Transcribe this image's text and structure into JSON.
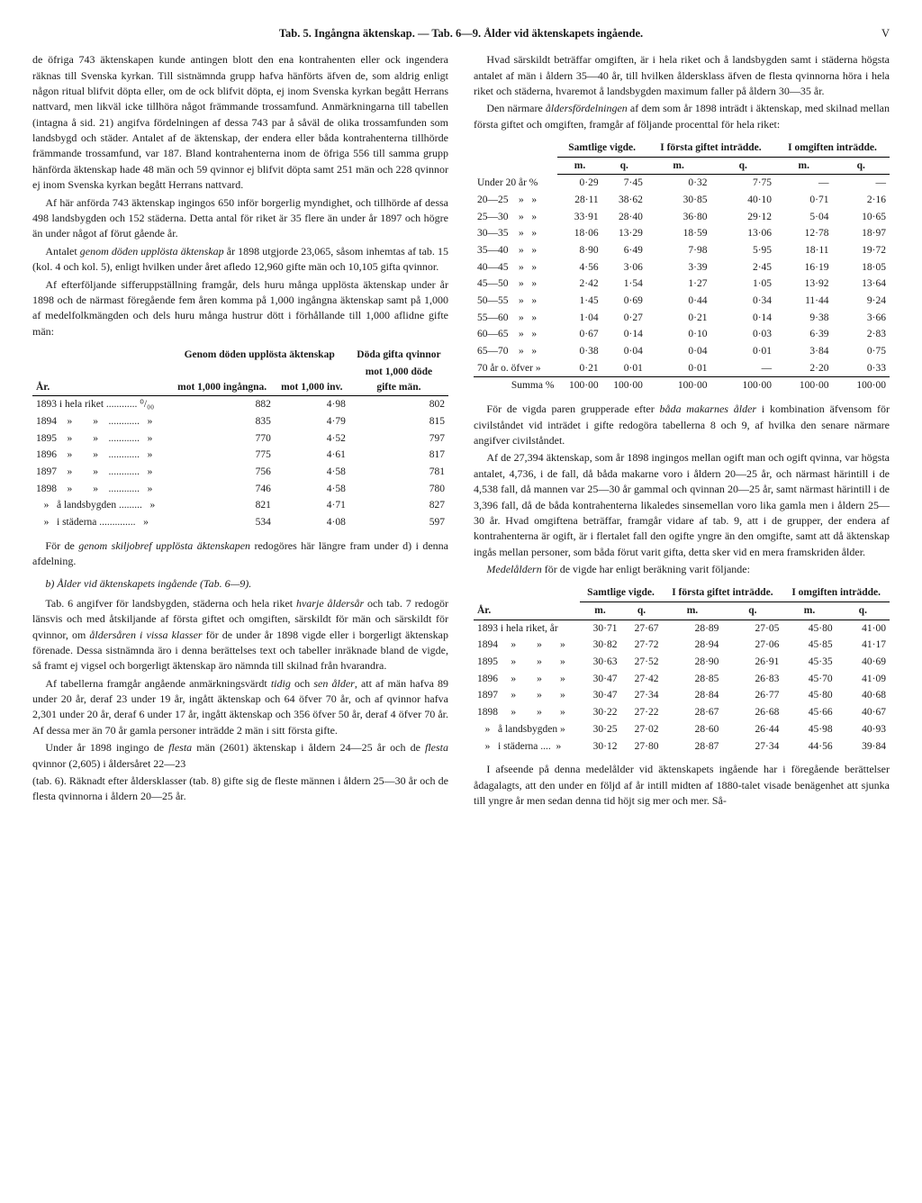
{
  "header": {
    "title": "Tab. 5. Ingångna äktenskap. — Tab. 6—9. Ålder vid äktenskapets ingående.",
    "pagenum": "V"
  },
  "col_left": {
    "p1": "de öfriga 743 äktenskapen kunde antingen blott den ena kontrahenten eller ock ingendera räknas till Svenska kyrkan. Till sistnämnda grupp hafva hänförts äfven de, som aldrig enligt någon ritual blifvit döpta eller, om de ock blifvit döpta, ej inom Svenska kyrkan begått Herrans nattvard, men likväl icke tillhöra något främmande trossamfund. Anmärkningarna till tabellen (intagna å sid. 21) angifva fördelningen af dessa 743 par å såväl de olika trossamfunden som landsbygd och städer. Antalet af de äktenskap, der endera eller båda kontrahenterna tillhörde främmande trossamfund, var 187. Bland kontrahenterna inom de öfriga 556 till samma grupp hänförda äktenskap hade 48 män och 59 qvinnor ej blifvit döpta samt 251 män och 228 qvinnor ej inom Svenska kyrkan begått Herrans nattvard.",
    "p2": "Af här anförda 743 äktenskap ingingos 650 inför borgerlig myndighet, och tillhörde af dessa 498 landsbygden och 152 städerna. Detta antal för riket är 35 flere än under år 1897 och högre än under något af förut gående år.",
    "p3_a": "Antalet ",
    "p3_em": "genom döden upplösta äktenskap",
    "p3_b": " år 1898 utgjorde 23,065, såsom inhemtas af tab. 15 (kol. 4 och kol. 5), enligt hvilken under året afledo 12,960 gifte män och 10,105 gifta qvinnor.",
    "p4": "Af efterföljande sifferuppställning framgår, dels huru många upplösta äktenskap under år 1898 och de närmast föregående fem åren komma på 1,000 ingångna äktenskap samt på 1,000 af medelfolkmängden och dels huru många hustrur dött i förhållande till 1,000 aflidne gifte män:",
    "table1": {
      "col_year": "År.",
      "col_b_a": "Genom döden upplösta äktenskap",
      "col_b_b1": "mot 1,000 ingångna.",
      "col_b_b2": "mot 1,000 inv.",
      "col_c_a": "Döda gifta qvinnor",
      "col_c_b": "mot 1,000 döde",
      "col_c_c": "gifte män.",
      "rows": [
        {
          "year": "1893 i hela riket ............ ⁰/₀₀",
          "a": "882",
          "b": "4·98",
          "c": "802"
        },
        {
          "year": "1894    »        »    ............   »",
          "a": "835",
          "b": "4·79",
          "c": "815"
        },
        {
          "year": "1895    »        »    ............   »",
          "a": "770",
          "b": "4·52",
          "c": "797"
        },
        {
          "year": "1896    »        »    ............   »",
          "a": "775",
          "b": "4·61",
          "c": "817"
        },
        {
          "year": "1897    »        »    ............   »",
          "a": "756",
          "b": "4·58",
          "c": "781"
        },
        {
          "year": "1898    »        »    ............   »",
          "a": "746",
          "b": "4·58",
          "c": "780"
        },
        {
          "year": "   »   å landsbygden .........   »",
          "a": "821",
          "b": "4·71",
          "c": "827"
        },
        {
          "year": "   »   i städerna ..............   »",
          "a": "534",
          "b": "4·08",
          "c": "597"
        }
      ]
    },
    "p5_a": "För de ",
    "p5_em": "genom skiljobref upplösta äktenskapen",
    "p5_b": " redogöres här längre fram under d) i denna afdelning.",
    "section_b": "b) Ålder vid äktenskapets ingående (Tab. 6—9).",
    "p6_a": "Tab. 6 angifver för landsbygden, städerna och hela riket ",
    "p6_em1": "hvarje åldersår",
    "p6_b": " och tab. 7 redogör länsvis och med åtskiljande af första giftet och omgiften, särskildt för män och särskildt för qvinnor, om ",
    "p6_em2": "åldersåren i vissa klasser",
    "p6_c": " för de under år 1898 vigde eller i borgerligt äktenskap förenade. Dessa sistnämnda äro i denna berättelses text och tabeller inräknade bland de vigde, så framt ej vigsel och borgerligt äktenskap äro nämnda till skilnad från hvarandra.",
    "p7_a": "Af tabellerna framgår angående anmärkningsvärdt ",
    "p7_em1": "tidig",
    "p7_b": " och ",
    "p7_em2": "sen ålder",
    "p7_c": ", att af män hafva 89 under 20 år, deraf 23 under 19 år, ingått äktenskap och 64 öfver 70 år, och af qvinnor hafva 2,301 under 20 år, deraf 6 under 17 år, ingått äktenskap och 356 öfver 50 år, deraf 4 öfver 70 år. Af dessa mer än 70 år gamla personer inträdde 2 män i sitt första gifte.",
    "p8_a": "Under år 1898 ingingo de ",
    "p8_em1": "flesta",
    "p8_b": " män (2601) äktenskap i åldern 24—25 år och de ",
    "p8_em2": "flesta",
    "p8_c": " qvinnor (2,605) i åldersåret 22—23"
  },
  "col_right": {
    "p1": "(tab. 6). Räknadt efter åldersklasser (tab. 8) gifte sig de fleste männen i åldern 25—30 år och de flesta qvinnorna i åldern 20—25 år.",
    "p2": "Hvad särskildt beträffar omgiften, är i hela riket och å landsbygden samt i städerna högsta antalet af män i åldern 35—40 år, till hvilken åldersklass äfven de flesta qvinnorna höra i hela riket och städerna, hvaremot å landsbygden maximum faller på åldern 30—35 år.",
    "p3_a": "Den närmare ",
    "p3_em": "åldersfördelningen",
    "p3_b": " af dem som år 1898 inträdt i äktenskap, med skilnad mellan första giftet och omgiften, framgår af följande procenttal för hela riket:",
    "table2": {
      "h_samtlige": "Samtlige vigde.",
      "h_forsta": "I första giftet inträdde.",
      "h_omgift": "I omgiften inträdde.",
      "h_m": "m.",
      "h_q": "q.",
      "rows": [
        {
          "label": "Under 20 år %",
          "m1": "0·29",
          "q1": "7·45",
          "m2": "0·32",
          "q2": "7·75",
          "m3": "—",
          "q3": "—"
        },
        {
          "label": "20—25    »   »",
          "m1": "28·11",
          "q1": "38·62",
          "m2": "30·85",
          "q2": "40·10",
          "m3": "0·71",
          "q3": "2·16"
        },
        {
          "label": "25—30    »   »",
          "m1": "33·91",
          "q1": "28·40",
          "m2": "36·80",
          "q2": "29·12",
          "m3": "5·04",
          "q3": "10·65"
        },
        {
          "label": "30—35    »   »",
          "m1": "18·06",
          "q1": "13·29",
          "m2": "18·59",
          "q2": "13·06",
          "m3": "12·78",
          "q3": "18·97"
        },
        {
          "label": "35—40    »   »",
          "m1": "8·90",
          "q1": "6·49",
          "m2": "7·98",
          "q2": "5·95",
          "m3": "18·11",
          "q3": "19·72"
        },
        {
          "label": "40—45    »   »",
          "m1": "4·56",
          "q1": "3·06",
          "m2": "3·39",
          "q2": "2·45",
          "m3": "16·19",
          "q3": "18·05"
        },
        {
          "label": "45—50    »   »",
          "m1": "2·42",
          "q1": "1·54",
          "m2": "1·27",
          "q2": "1·05",
          "m3": "13·92",
          "q3": "13·64"
        },
        {
          "label": "50—55    »   »",
          "m1": "1·45",
          "q1": "0·69",
          "m2": "0·44",
          "q2": "0·34",
          "m3": "11·44",
          "q3": "9·24"
        },
        {
          "label": "55—60    »   »",
          "m1": "1·04",
          "q1": "0·27",
          "m2": "0·21",
          "q2": "0·14",
          "m3": "9·38",
          "q3": "3·66"
        },
        {
          "label": "60—65    »   »",
          "m1": "0·67",
          "q1": "0·14",
          "m2": "0·10",
          "q2": "0·03",
          "m3": "6·39",
          "q3": "2·83"
        },
        {
          "label": "65—70    »   »",
          "m1": "0·38",
          "q1": "0·04",
          "m2": "0·04",
          "q2": "0·01",
          "m3": "3·84",
          "q3": "0·75"
        },
        {
          "label": "70 år o. öfver »",
          "m1": "0·21",
          "q1": "0·01",
          "m2": "0·01",
          "q2": "—",
          "m3": "2·20",
          "q3": "0·33"
        }
      ],
      "sum": {
        "label": "Summa %",
        "m1": "100·00",
        "q1": "100·00",
        "m2": "100·00",
        "q2": "100·00",
        "m3": "100·00",
        "q3": "100·00"
      }
    },
    "p4_a": "För de vigda paren grupperade efter ",
    "p4_em": "båda makarnes ålder",
    "p4_b": " i kombination äfvensom för civilståndet vid inträdet i gifte redogöra tabellerna 8 och 9, af hvilka den senare närmare angifver civilståndet.",
    "p5": "Af de 27,394 äktenskap, som år 1898 ingingos mellan ogift man och ogift qvinna, var högsta antalet, 4,736, i de fall, då båda makarne voro i åldern 20—25 år, och närmast härintill i de 4,538 fall, då mannen var 25—30 år gammal och qvinnan 20—25 år, samt närmast härintill i de 3,396 fall, då de båda kontrahenterna likaledes sinsemellan voro lika gamla men i åldern 25—30 år. Hvad omgiftena beträffar, framgår vidare af tab. 9, att i de grupper, der endera af kontrahenterna är ogift, är i flertalet fall den ogifte yngre än den omgifte, samt att då äktenskap ingås mellan personer, som båda förut varit gifta, detta sker vid en mera framskriden ålder.",
    "p6_em": "Medelåldern",
    "p6_b": " för de vigde har enligt beräkning varit följande:",
    "table3": {
      "h_year": "År.",
      "h_samtlige": "Samtlige vigde.",
      "h_forsta": "I första giftet inträdde.",
      "h_omgift": "I omgiften inträdde.",
      "h_m": "m.",
      "h_q": "q.",
      "rows": [
        {
          "year": "1893 i hela riket, år",
          "m1": "30·71",
          "q1": "27·67",
          "m2": "28·89",
          "q2": "27·05",
          "m3": "45·80",
          "q3": "41·00"
        },
        {
          "year": "1894     »        »       »",
          "m1": "30·82",
          "q1": "27·72",
          "m2": "28·94",
          "q2": "27·06",
          "m3": "45·85",
          "q3": "41·17"
        },
        {
          "year": "1895     »        »       »",
          "m1": "30·63",
          "q1": "27·52",
          "m2": "28·90",
          "q2": "26·91",
          "m3": "45·35",
          "q3": "40·69"
        },
        {
          "year": "1896     »        »       »",
          "m1": "30·47",
          "q1": "27·42",
          "m2": "28·85",
          "q2": "26·83",
          "m3": "45·70",
          "q3": "41·09"
        },
        {
          "year": "1897     »        »       »",
          "m1": "30·47",
          "q1": "27·34",
          "m2": "28·84",
          "q2": "26·77",
          "m3": "45·80",
          "q3": "40·68"
        },
        {
          "year": "1898     »        »       »",
          "m1": "30·22",
          "q1": "27·22",
          "m2": "28·67",
          "q2": "26·68",
          "m3": "45·66",
          "q3": "40·67"
        },
        {
          "year": "   »   å landsbygden »",
          "m1": "30·25",
          "q1": "27·02",
          "m2": "28·60",
          "q2": "26·44",
          "m3": "45·98",
          "q3": "40·93"
        },
        {
          "year": "   »   i städerna ....  »",
          "m1": "30·12",
          "q1": "27·80",
          "m2": "28·87",
          "q2": "27·34",
          "m3": "44·56",
          "q3": "39·84"
        }
      ]
    },
    "p7": "I afseende på denna medelålder vid äktenskapets ingående har i föregående berättelser ådagalagts, att den under en följd af år intill midten af 1880-talet visade benägenhet att sjunka till yngre år men sedan denna tid höjt sig mer och mer. Så-"
  }
}
